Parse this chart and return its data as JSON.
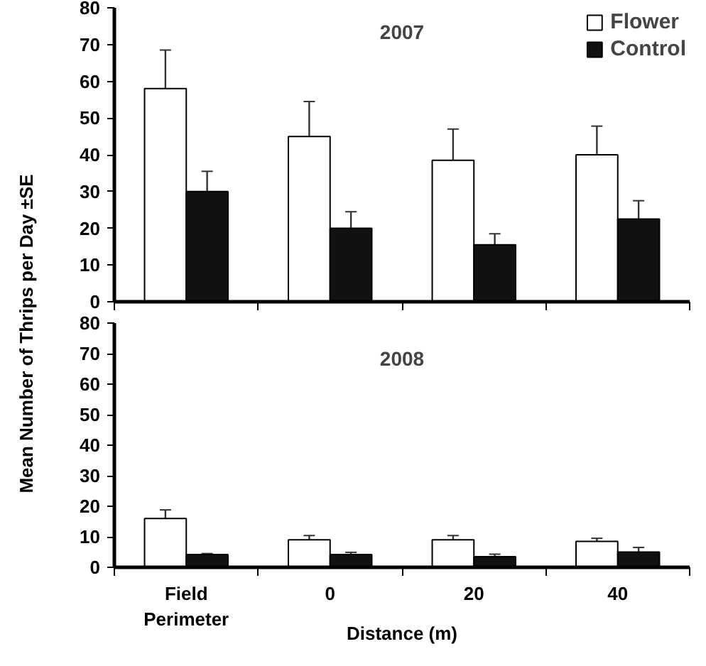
{
  "chart_data": [
    {
      "type": "bar",
      "title": "2007",
      "ylabel": "Mean Number of Thrips per Day ±SE",
      "categories": [
        null,
        null,
        null,
        null
      ],
      "ylim": [
        0,
        80
      ],
      "yticks": [
        0,
        10,
        20,
        30,
        40,
        50,
        60,
        70,
        80
      ],
      "grid": false,
      "legend": "top right",
      "series": [
        {
          "name": "Flower",
          "color": "#ffffff",
          "values": [
            58,
            45,
            38.5,
            40
          ],
          "errors": [
            10.5,
            9.5,
            8.5,
            7.8
          ]
        },
        {
          "name": "Control",
          "color": "#111111",
          "values": [
            30,
            20,
            15.5,
            22.5
          ],
          "errors": [
            5.5,
            4.5,
            3,
            5
          ]
        }
      ]
    },
    {
      "type": "bar",
      "title": "2008",
      "xlabel": "Distance (m)",
      "categories": [
        "Field Perimeter",
        "0",
        "20",
        "40"
      ],
      "ylim": [
        0,
        80
      ],
      "yticks": [
        0,
        10,
        20,
        30,
        40,
        50,
        60,
        70,
        80
      ],
      "grid": false,
      "legend": false,
      "series": [
        {
          "color": "#ffffff",
          "values": [
            16,
            9,
            9,
            8.5
          ],
          "errors": [
            2.8,
            1.4,
            1.4,
            1
          ]
        },
        {
          "color": "#111111",
          "values": [
            4.2,
            4.2,
            3.5,
            5
          ],
          "errors": [
            0.3,
            0.7,
            0.8,
            1.5
          ]
        }
      ]
    }
  ]
}
